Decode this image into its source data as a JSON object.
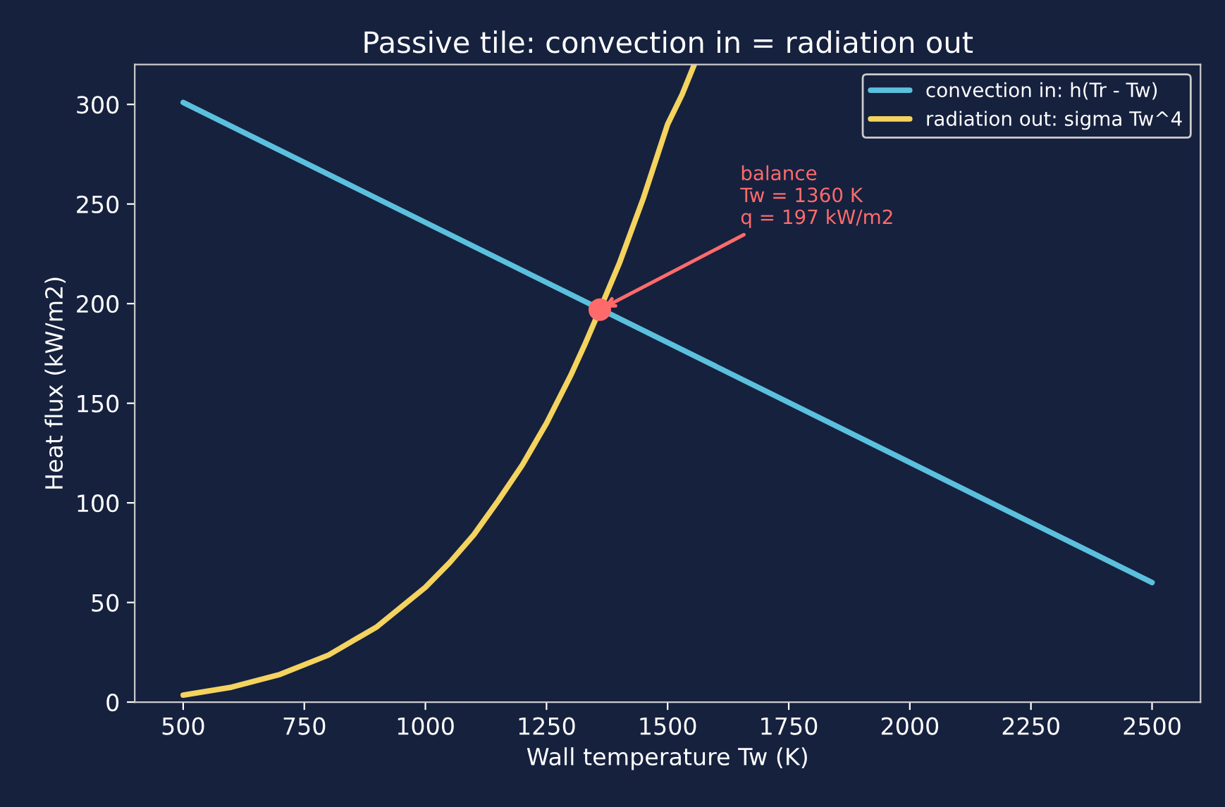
{
  "chart_data": {
    "type": "line",
    "title": "Passive tile: convection in = radiation out",
    "xlabel": "Wall temperature Tw (K)",
    "ylabel": "Heat flux (kW/m2)",
    "series": [
      {
        "name": "convection in: h(Tr - Tw)",
        "color": "#5bc0de",
        "x": [
          500,
          2500
        ],
        "values": [
          301,
          60
        ]
      },
      {
        "name": "radiation out: sigma Tw^4",
        "color": "#f4d35e",
        "x": [
          500,
          600,
          700,
          800,
          900,
          1000,
          1050,
          1100,
          1150,
          1200,
          1250,
          1300,
          1330,
          1360,
          1400,
          1450,
          1500,
          1530,
          1555
        ],
        "values": [
          3.5,
          7.5,
          13.9,
          23.6,
          37.8,
          57.6,
          70,
          84,
          101,
          119,
          140,
          164,
          180,
          197,
          220,
          253,
          290,
          305,
          320
        ]
      },
      {
        "type": "scatter",
        "marker": "circle",
        "color": "#ff6b6b",
        "x": [
          1360
        ],
        "values": [
          197
        ]
      }
    ],
    "annotations": [
      {
        "text": "balance\nTw = 1360 K\nq = 197 kW/m2",
        "x": 1360,
        "y": 197
      }
    ],
    "xlim": [
      400,
      2600
    ],
    "xticks": [
      500,
      750,
      1000,
      1250,
      1500,
      1750,
      2000,
      2250,
      2500
    ],
    "ylim": [
      0,
      320
    ],
    "yticks": [
      0,
      50,
      100,
      150,
      200,
      250,
      300
    ],
    "legend": "top right",
    "grid": false,
    "marker": "none",
    "line_style": "solid"
  }
}
